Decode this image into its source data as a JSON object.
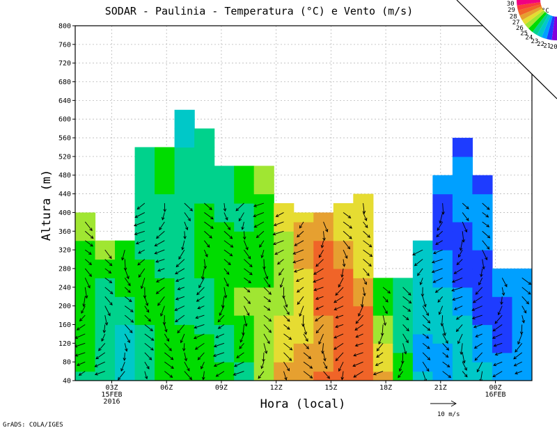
{
  "chart_data": {
    "type": "heatmap",
    "title": "SODAR - Paulinia - Temperatura (°C) e Vento (m/s)",
    "xlabel": "Hora (local)",
    "ylabel": "Altura (m)",
    "ylim": [
      40,
      800
    ],
    "xlim": [
      0,
      25
    ],
    "y_ticks": [
      40,
      80,
      120,
      160,
      200,
      240,
      280,
      320,
      360,
      400,
      440,
      480,
      520,
      560,
      600,
      640,
      680,
      720,
      760,
      800
    ],
    "x_ticks": [
      {
        "value": 2,
        "label": "03Z",
        "sub": [
          "15FEB",
          "2016"
        ]
      },
      {
        "value": 5,
        "label": "06Z",
        "sub": []
      },
      {
        "value": 8,
        "label": "09Z",
        "sub": []
      },
      {
        "value": 11,
        "label": "12Z",
        "sub": []
      },
      {
        "value": 14,
        "label": "15Z",
        "sub": []
      },
      {
        "value": 17,
        "label": "18Z",
        "sub": []
      },
      {
        "value": 20,
        "label": "21Z",
        "sub": []
      },
      {
        "value": 23,
        "label": "00Z",
        "sub": [
          "16FEB"
        ]
      }
    ],
    "data_top_height": [
      400,
      340,
      340,
      540,
      540,
      620,
      580,
      500,
      500,
      500,
      420,
      400,
      400,
      420,
      440,
      260,
      260,
      340,
      480,
      560,
      480,
      280,
      280
    ],
    "temperature_surface_profile": [
      23.5,
      23.0,
      23.0,
      24.0,
      24.5,
      24.0,
      24.5,
      24.5,
      24.5,
      25.5,
      26.5,
      27.5,
      28.5,
      29.0,
      28.5,
      26.5,
      24.5,
      22.5,
      22.0,
      22.0,
      21.5,
      21.5,
      22.0
    ],
    "temperature_aloft_profile": [
      25.5,
      25.0,
      24.5,
      23.5,
      23.5,
      23.0,
      23.5,
      24.0,
      24.5,
      24.5,
      25.5,
      26.5,
      27.5,
      27.0,
      26.5,
      24.5,
      23.0,
      22.0,
      21.0,
      20.5,
      20.5,
      21.0,
      21.0
    ],
    "colorbar": {
      "unit": "°C",
      "levels": [
        30,
        29,
        28,
        27,
        26,
        25,
        24,
        23,
        22,
        21,
        20
      ],
      "colors": [
        "#f00082",
        "#fa3c3c",
        "#f06428",
        "#e6a030",
        "#e6dc32",
        "#a0e632",
        "#00dc00",
        "#00d28c",
        "#00c8c8",
        "#00a0ff",
        "#1e3cff",
        "#8200dc"
      ]
    },
    "wind_reference": {
      "label": "10 m/s",
      "speed": 10
    }
  },
  "footer": {
    "source": "GrADS: COLA/IGES"
  }
}
